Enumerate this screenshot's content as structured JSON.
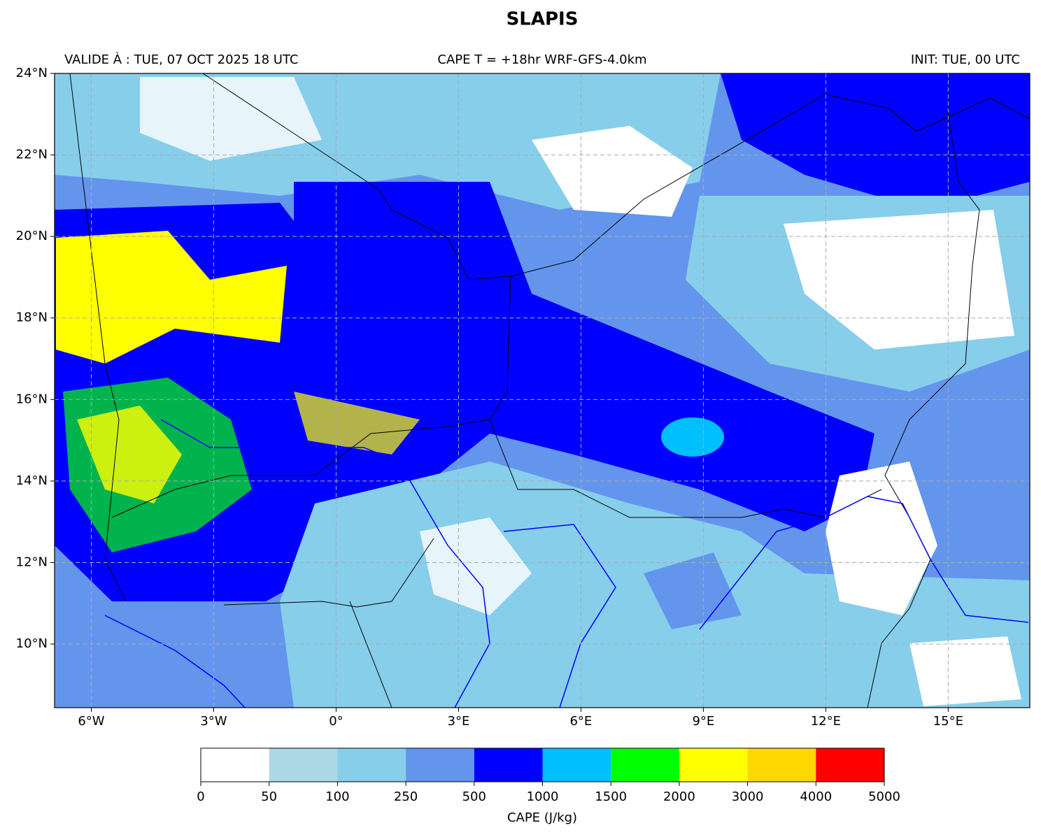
{
  "title": "SLAPIS",
  "subtitle_left": "VALIDE À : TUE, 07 OCT 2025 18 UTC",
  "subtitle_center": "CAPE T = +18hr WRF-GFS-4.0km",
  "subtitle_right": "INIT: TUE, 00 UTC",
  "chart_data": {
    "type": "map",
    "xlim": [
      -6.9,
      17.0
    ],
    "ylim": [
      8.44,
      24
    ],
    "xticks": [
      {
        "value": -6,
        "label": "6°W"
      },
      {
        "value": -3,
        "label": "3°W"
      },
      {
        "value": 0,
        "label": "0°"
      },
      {
        "value": 3,
        "label": "3°E"
      },
      {
        "value": 6,
        "label": "6°E"
      },
      {
        "value": 9,
        "label": "9°E"
      },
      {
        "value": 12,
        "label": "12°E"
      },
      {
        "value": 15,
        "label": "15°E"
      }
    ],
    "yticks": [
      {
        "value": 10,
        "label": "10°N"
      },
      {
        "value": 12,
        "label": "12°N"
      },
      {
        "value": 14,
        "label": "14°N"
      },
      {
        "value": 16,
        "label": "16°N"
      },
      {
        "value": 18,
        "label": "18°N"
      },
      {
        "value": 20,
        "label": "20°N"
      },
      {
        "value": 22,
        "label": "22°N"
      },
      {
        "value": 24,
        "label": "24°N"
      }
    ],
    "grid": true,
    "colorbar": {
      "label": "CAPE (J/kg)",
      "bounds": [
        0,
        50,
        100,
        250,
        500,
        1000,
        1500,
        2000,
        3000,
        4000,
        5000
      ],
      "colors": [
        "#ffffff",
        "#add8e6",
        "#87ceeb",
        "#6495ed",
        "#0000ff",
        "#00bfff",
        "#00ff00",
        "#ffff00",
        "#ffd700",
        "#ff0000"
      ]
    }
  }
}
